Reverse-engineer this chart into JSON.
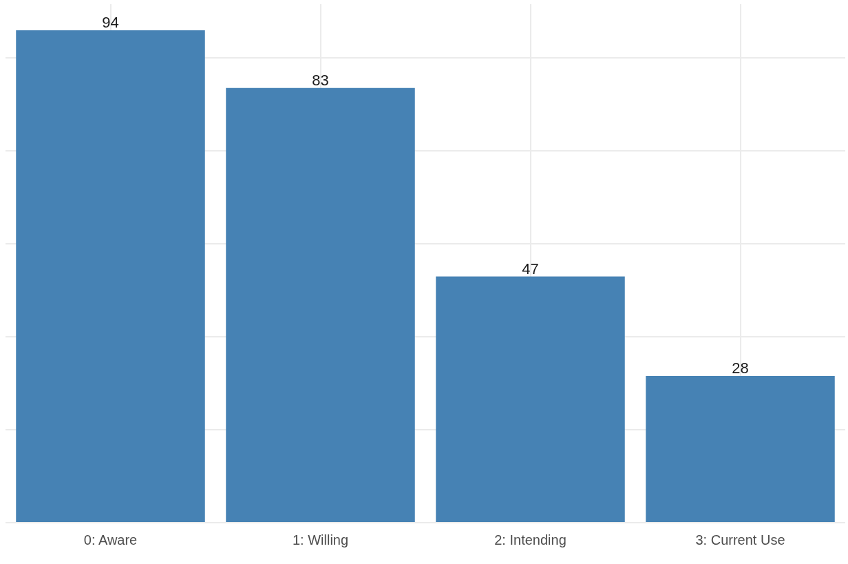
{
  "chart_data": {
    "type": "bar",
    "categories": [
      "0: Aware",
      "1: Willing",
      "2: Intending",
      "3: Current Use"
    ],
    "values": [
      94,
      83,
      47,
      28
    ],
    "color": "#4682b4",
    "ylim": [
      0,
      99
    ],
    "yticks": [
      {
        "value": 0,
        "label": null
      },
      {
        "value": 17.75,
        "label": null
      },
      {
        "value": 35.5,
        "label": null
      },
      {
        "value": 53.25,
        "label": null
      },
      {
        "value": 71,
        "label": null
      },
      {
        "value": 88.75,
        "label": null
      }
    ],
    "tick_labels": "x",
    "grid": true,
    "data_labels": true,
    "legend": false
  }
}
